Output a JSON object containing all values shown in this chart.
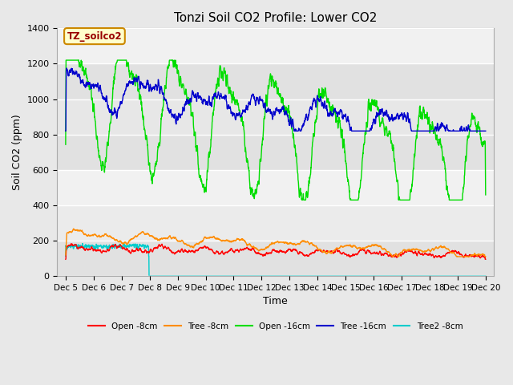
{
  "title": "Tonzi Soil CO2 Profile: Lower CO2",
  "xlabel": "Time",
  "ylabel": "Soil CO2 (ppm)",
  "ylim": [
    0,
    1400
  ],
  "yticks": [
    0,
    200,
    400,
    600,
    800,
    1000,
    1200,
    1400
  ],
  "x_start": 4.7,
  "x_end": 20.3,
  "x_labels": [
    "Dec 5",
    "Dec 6",
    "Dec 7",
    "Dec 8",
    "Dec 9",
    "Dec 10",
    "Dec 11",
    "Dec 12",
    "Dec 13",
    "Dec 14",
    "Dec 15",
    "Dec 16",
    "Dec 17",
    "Dec 18",
    "Dec 19",
    "Dec 20"
  ],
  "x_ticks": [
    5,
    6,
    7,
    8,
    9,
    10,
    11,
    12,
    13,
    14,
    15,
    16,
    17,
    18,
    19,
    20
  ],
  "legend_labels": [
    "Open -8cm",
    "Tree -8cm",
    "Open -16cm",
    "Tree -16cm",
    "Tree2 -8cm"
  ],
  "legend_colors": [
    "#ff0000",
    "#ff8c00",
    "#00dd00",
    "#0000cc",
    "#00cccc"
  ],
  "annotation_text": "TZ_soilco2",
  "annotation_bg": "#ffffcc",
  "annotation_border": "#cc8800",
  "fig_bg": "#e8e8e8",
  "plot_bg": "#f0f0f0",
  "band1_color": "#dcdcdc",
  "band2_color": "#f0f0f0",
  "grid_color": "#ffffff",
  "line_width": 1.0,
  "seed": 42
}
